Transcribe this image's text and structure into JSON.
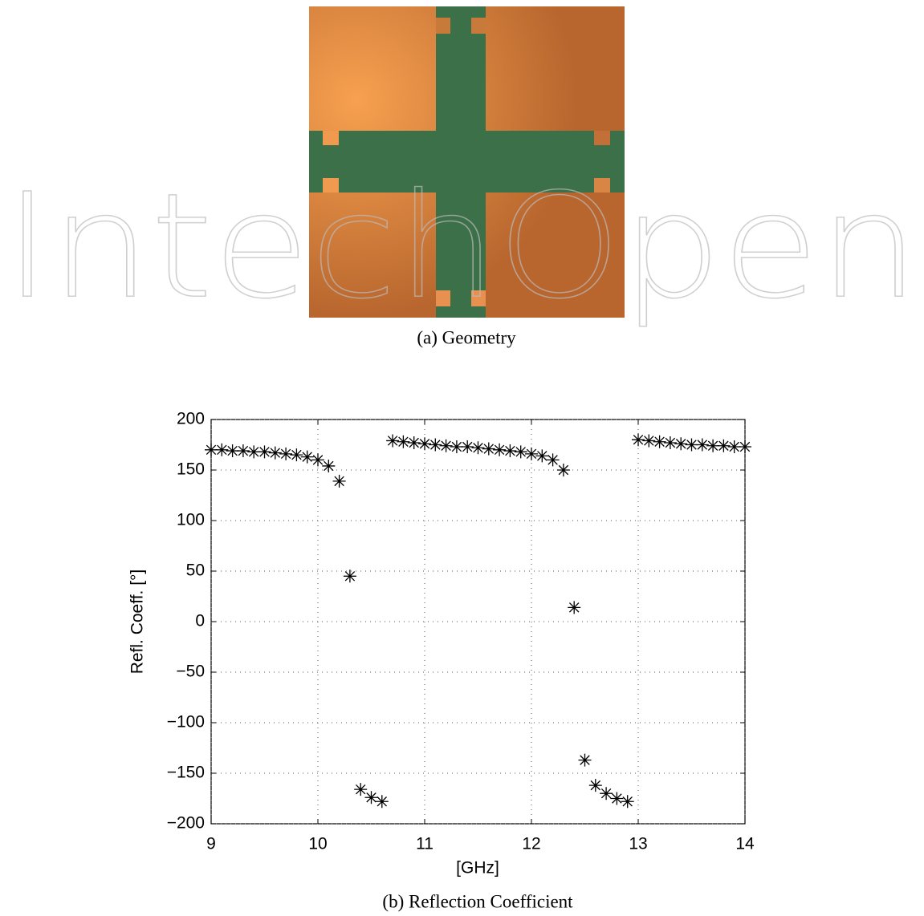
{
  "figure": {
    "watermark": "IntechOpen",
    "caption_a": "(a)  Geometry",
    "caption_b": "(b)  Reflection Coefficient"
  },
  "chart_data": {
    "type": "scatter",
    "xlabel": "[GHz]",
    "ylabel": "Refl. Coeff. [°]",
    "marker": "asterisk",
    "color": "#000000",
    "grid": true,
    "x": [
      9.0,
      9.1,
      9.2,
      9.3,
      9.4,
      9.5,
      9.6,
      9.7,
      9.8,
      9.9,
      10.0,
      10.1,
      10.2,
      10.3,
      10.4,
      10.5,
      10.6,
      10.7,
      10.8,
      10.9,
      11.0,
      11.1,
      11.2,
      11.3,
      11.4,
      11.5,
      11.6,
      11.7,
      11.8,
      11.9,
      12.0,
      12.1,
      12.2,
      12.3,
      12.4,
      12.5,
      12.6,
      12.7,
      12.8,
      12.9,
      13.0,
      13.1,
      13.2,
      13.3,
      13.4,
      13.5,
      13.6,
      13.7,
      13.8,
      13.9,
      14.0
    ],
    "values": [
      170,
      170,
      169,
      169,
      168,
      168,
      167,
      166,
      165,
      163,
      160,
      154,
      139,
      45,
      -166,
      -174,
      -178,
      179,
      178,
      177,
      176,
      175,
      174,
      173,
      173,
      172,
      171,
      170,
      169,
      168,
      166,
      164,
      160,
      150,
      14,
      -137,
      -162,
      -170,
      -175,
      -178,
      180,
      179,
      178,
      177,
      176,
      175,
      175,
      174,
      174,
      173,
      173
    ],
    "xlim": [
      9,
      14
    ],
    "xticks": [
      9,
      10,
      11,
      12,
      13,
      14
    ],
    "ylim": [
      -200,
      200
    ],
    "yticks": [
      {
        "value": -200,
        "label": "−200"
      },
      {
        "value": -150,
        "label": "−150"
      },
      {
        "value": -100,
        "label": "−100"
      },
      {
        "value": -50,
        "label": "−50"
      },
      0,
      50,
      100,
      150,
      200
    ]
  }
}
